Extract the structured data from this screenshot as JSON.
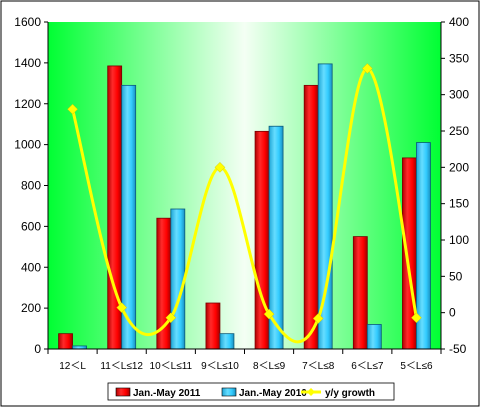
{
  "chart_data": {
    "type": "bar",
    "categories": [
      "12＜L",
      "11＜L≤12",
      "10＜L≤11",
      "9＜L≤10",
      "8＜L≤9",
      "7＜L≤8",
      "6＜L≤7",
      "5＜L≤6"
    ],
    "series": [
      {
        "name": "Jan.-May 2011",
        "kind": "bar",
        "axis": "left",
        "color": "#ff0000",
        "values": [
          75,
          1385,
          640,
          225,
          1065,
          1290,
          550,
          935
        ]
      },
      {
        "name": "Jan.-May 2010",
        "kind": "bar",
        "axis": "left",
        "color": "#33ccff",
        "values": [
          15,
          1290,
          685,
          75,
          1090,
          1395,
          120,
          1010
        ]
      },
      {
        "name": "y/y growth",
        "kind": "line",
        "axis": "right",
        "color": "#ffff00",
        "values": [
          280,
          7,
          -7,
          200,
          -2,
          -8,
          336,
          -7
        ]
      }
    ],
    "y_left": {
      "min": 0,
      "max": 1600,
      "ticks": [
        "0",
        "200",
        "400",
        "600",
        "800",
        "1000",
        "1200",
        "1400",
        "1600"
      ]
    },
    "y_right": {
      "min": -50,
      "max": 400,
      "ticks": [
        "-50",
        "0",
        "50",
        "100",
        "150",
        "200",
        "250",
        "300",
        "350",
        "400"
      ]
    },
    "plot_background": "#00ff33",
    "legend_position": "bottom"
  }
}
